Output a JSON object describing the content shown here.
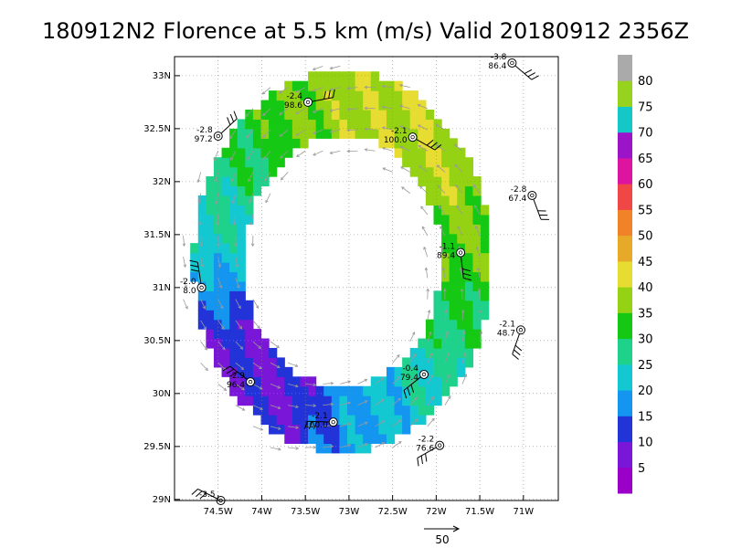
{
  "chart_data": {
    "type": "heatmap",
    "title": "180912N2 Florence at 5.5 km (m/s) Valid 20180912 2356Z",
    "x_ticks": [
      "74.5W",
      "74W",
      "73.5W",
      "73W",
      "72.5W",
      "72W",
      "71.5W",
      "71W"
    ],
    "y_ticks": [
      "29N",
      "29.5N",
      "30N",
      "30.5N",
      "31N",
      "31.5N",
      "32N",
      "32.5N",
      "33N"
    ],
    "xlim": [
      -75.0,
      -70.6
    ],
    "ylim": [
      28.99,
      33.18
    ],
    "grid": true,
    "colorbar": {
      "labels": [
        "5",
        "10",
        "15",
        "20",
        "25",
        "30",
        "35",
        "40",
        "45",
        "50",
        "55",
        "60",
        "65",
        "70",
        "75",
        "80"
      ],
      "colors": [
        "#9a00c8",
        "#7a16d8",
        "#2233d8",
        "#1496f0",
        "#14c8d2",
        "#1ed28c",
        "#14c814",
        "#96d214",
        "#e6dc32",
        "#e6aa28",
        "#f08228",
        "#f04646",
        "#dc14a0",
        "#9b14c8",
        "#14c8c8",
        "#96d21e",
        "#aaaaaa"
      ]
    },
    "wind_speed_grid_note": "",
    "rings": [
      {
        "cx": -73.12,
        "cy": 31.2,
        "rx": 1.45,
        "ry": 1.52,
        "v_north": 38,
        "v_east": 34,
        "v_south": 16,
        "v_west": 22
      }
    ],
    "stations": [
      {
        "lon": -74.47,
        "lat": 28.99,
        "top": "-3.5",
        "bottom": ""
      },
      {
        "lon": -74.69,
        "lat": 31.0,
        "top": "-2.0",
        "bottom": "8.0"
      },
      {
        "lon": -74.13,
        "lat": 30.11,
        "top": "-2.9",
        "bottom": "96.4"
      },
      {
        "lon": -74.5,
        "lat": 32.43,
        "top": "-2.8",
        "bottom": "97.2"
      },
      {
        "lon": -73.47,
        "lat": 32.75,
        "top": "-2.4",
        "bottom": "98.6"
      },
      {
        "lon": -72.27,
        "lat": 32.42,
        "top": "-2.1",
        "bottom": "100.0"
      },
      {
        "lon": -71.13,
        "lat": 33.12,
        "top": "-3.8",
        "bottom": "86.4"
      },
      {
        "lon": -70.9,
        "lat": 31.87,
        "top": "-2.8",
        "bottom": "67.4"
      },
      {
        "lon": -71.72,
        "lat": 31.33,
        "top": "-1.1",
        "bottom": "89.4"
      },
      {
        "lon": -71.03,
        "lat": 30.6,
        "top": "-2.1",
        "bottom": "48.7"
      },
      {
        "lon": -72.14,
        "lat": 30.18,
        "top": "-0.4",
        "bottom": "79.4"
      },
      {
        "lon": -73.18,
        "lat": 29.73,
        "top": "-2.1",
        "bottom": "100.0"
      },
      {
        "lon": -71.96,
        "lat": 29.51,
        "top": "-2.2",
        "bottom": "76.6"
      }
    ],
    "reference_vector_label": "50"
  }
}
